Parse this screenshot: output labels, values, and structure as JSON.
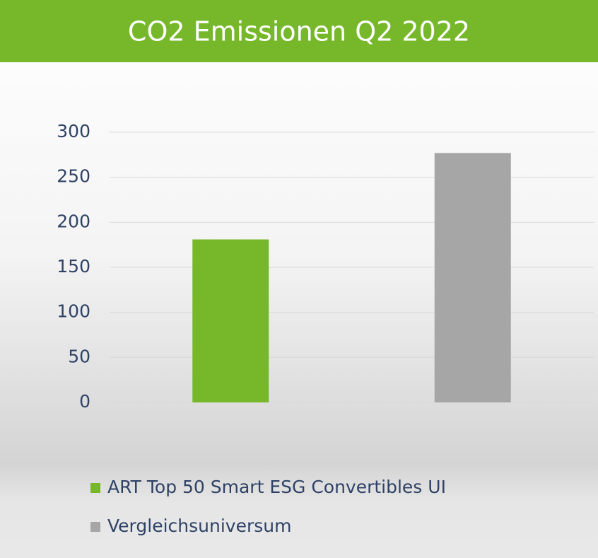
{
  "chart_data": {
    "type": "bar",
    "title": "CO2 Emissionen Q2 2022",
    "categories": [
      null
    ],
    "series": [
      {
        "name": "ART Top 50 Smart ESG Convertibles UI",
        "color": "#76b82a",
        "values": [
          181
        ]
      },
      {
        "name": "Vergleichsuniversum",
        "color": "#a6a6a6",
        "values": [
          277
        ]
      }
    ],
    "ylim": [
      0,
      300
    ],
    "yticks": [
      0,
      50,
      100,
      150,
      200,
      250,
      300
    ],
    "grid": true
  }
}
